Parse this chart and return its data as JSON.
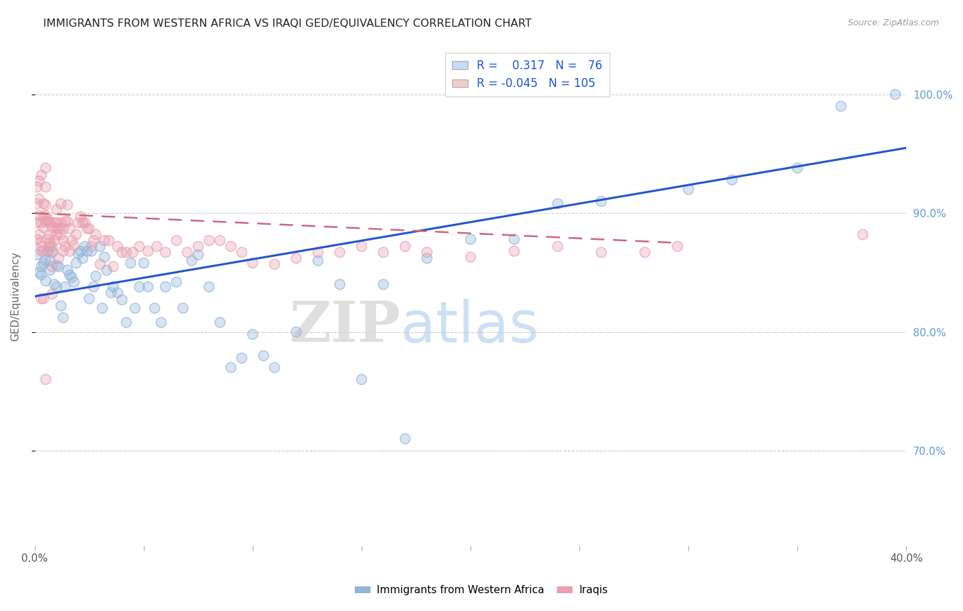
{
  "title": "IMMIGRANTS FROM WESTERN AFRICA VS IRAQI GED/EQUIVALENCY CORRELATION CHART",
  "source": "Source: ZipAtlas.com",
  "ylabel": "GED/Equivalency",
  "ytick_labels": [
    "70.0%",
    "80.0%",
    "90.0%",
    "100.0%"
  ],
  "ytick_values": [
    0.7,
    0.8,
    0.9,
    1.0
  ],
  "xlim": [
    0.0,
    0.4
  ],
  "ylim": [
    0.62,
    1.04
  ],
  "r1": 0.317,
  "n1": 76,
  "r2": -0.045,
  "n2": 105,
  "blue_color": "#92b4d9",
  "pink_color": "#e8a0b0",
  "blue_line_color": "#2255cc",
  "pink_line_color": "#cc6677",
  "watermark_zip": "ZIP",
  "watermark_atlas": "atlas",
  "legend_blue_fill": "#c9daf8",
  "legend_pink_fill": "#f4cccc",
  "blue_line_x": [
    0.0,
    0.4
  ],
  "blue_line_y": [
    0.83,
    0.955
  ],
  "pink_line_x": [
    0.0,
    0.295
  ],
  "pink_line_y": [
    0.9,
    0.875
  ],
  "blue_scatter_x": [
    0.001,
    0.002,
    0.003,
    0.003,
    0.004,
    0.005,
    0.005,
    0.006,
    0.007,
    0.007,
    0.008,
    0.009,
    0.01,
    0.01,
    0.011,
    0.012,
    0.013,
    0.014,
    0.015,
    0.016,
    0.017,
    0.018,
    0.019,
    0.02,
    0.021,
    0.022,
    0.023,
    0.024,
    0.025,
    0.026,
    0.027,
    0.028,
    0.03,
    0.031,
    0.032,
    0.033,
    0.035,
    0.036,
    0.038,
    0.04,
    0.042,
    0.044,
    0.046,
    0.048,
    0.05,
    0.052,
    0.055,
    0.058,
    0.06,
    0.065,
    0.068,
    0.072,
    0.075,
    0.08,
    0.085,
    0.09,
    0.095,
    0.1,
    0.105,
    0.11,
    0.12,
    0.13,
    0.14,
    0.15,
    0.16,
    0.17,
    0.18,
    0.2,
    0.22,
    0.24,
    0.26,
    0.3,
    0.32,
    0.35,
    0.37,
    0.395
  ],
  "blue_scatter_y": [
    0.865,
    0.85,
    0.855,
    0.848,
    0.858,
    0.86,
    0.843,
    0.868,
    0.852,
    0.86,
    0.868,
    0.84,
    0.856,
    0.838,
    0.855,
    0.822,
    0.812,
    0.838,
    0.852,
    0.848,
    0.846,
    0.842,
    0.858,
    0.866,
    0.868,
    0.862,
    0.872,
    0.868,
    0.828,
    0.868,
    0.838,
    0.847,
    0.872,
    0.82,
    0.863,
    0.852,
    0.833,
    0.838,
    0.833,
    0.827,
    0.808,
    0.858,
    0.82,
    0.838,
    0.858,
    0.838,
    0.82,
    0.808,
    0.838,
    0.842,
    0.82,
    0.86,
    0.865,
    0.838,
    0.808,
    0.77,
    0.778,
    0.798,
    0.78,
    0.77,
    0.8,
    0.86,
    0.84,
    0.76,
    0.84,
    0.71,
    0.862,
    0.878,
    0.878,
    0.908,
    0.91,
    0.92,
    0.928,
    0.938,
    0.99,
    1.0
  ],
  "pink_scatter_x": [
    0.001,
    0.001,
    0.001,
    0.001,
    0.002,
    0.002,
    0.002,
    0.002,
    0.003,
    0.003,
    0.003,
    0.003,
    0.003,
    0.004,
    0.004,
    0.004,
    0.004,
    0.005,
    0.005,
    0.005,
    0.005,
    0.005,
    0.006,
    0.006,
    0.006,
    0.006,
    0.007,
    0.007,
    0.007,
    0.007,
    0.008,
    0.008,
    0.008,
    0.008,
    0.009,
    0.009,
    0.01,
    0.01,
    0.01,
    0.01,
    0.011,
    0.011,
    0.012,
    0.012,
    0.012,
    0.013,
    0.013,
    0.013,
    0.014,
    0.014,
    0.015,
    0.015,
    0.016,
    0.016,
    0.017,
    0.018,
    0.019,
    0.02,
    0.021,
    0.022,
    0.023,
    0.024,
    0.025,
    0.026,
    0.027,
    0.028,
    0.03,
    0.032,
    0.034,
    0.036,
    0.038,
    0.04,
    0.042,
    0.045,
    0.048,
    0.052,
    0.056,
    0.06,
    0.065,
    0.07,
    0.075,
    0.08,
    0.085,
    0.09,
    0.095,
    0.1,
    0.11,
    0.12,
    0.13,
    0.14,
    0.15,
    0.16,
    0.17,
    0.18,
    0.2,
    0.22,
    0.24,
    0.26,
    0.28,
    0.295,
    0.003,
    0.004,
    0.005,
    0.008,
    0.38
  ],
  "pink_scatter_y": [
    0.878,
    0.892,
    0.908,
    0.922,
    0.898,
    0.882,
    0.912,
    0.927,
    0.868,
    0.872,
    0.892,
    0.876,
    0.932,
    0.897,
    0.888,
    0.908,
    0.868,
    0.893,
    0.898,
    0.907,
    0.922,
    0.938,
    0.878,
    0.893,
    0.868,
    0.895,
    0.882,
    0.892,
    0.872,
    0.875,
    0.888,
    0.872,
    0.867,
    0.855,
    0.877,
    0.892,
    0.892,
    0.903,
    0.882,
    0.887,
    0.862,
    0.887,
    0.882,
    0.892,
    0.908,
    0.877,
    0.868,
    0.887,
    0.872,
    0.893,
    0.893,
    0.907,
    0.887,
    0.868,
    0.877,
    0.873,
    0.882,
    0.892,
    0.897,
    0.892,
    0.892,
    0.887,
    0.887,
    0.872,
    0.877,
    0.882,
    0.857,
    0.877,
    0.877,
    0.855,
    0.872,
    0.867,
    0.867,
    0.867,
    0.872,
    0.868,
    0.872,
    0.867,
    0.877,
    0.867,
    0.872,
    0.877,
    0.877,
    0.872,
    0.867,
    0.858,
    0.857,
    0.862,
    0.867,
    0.867,
    0.872,
    0.867,
    0.872,
    0.867,
    0.863,
    0.868,
    0.872,
    0.867,
    0.867,
    0.872,
    0.828,
    0.828,
    0.76,
    0.832,
    0.882
  ]
}
